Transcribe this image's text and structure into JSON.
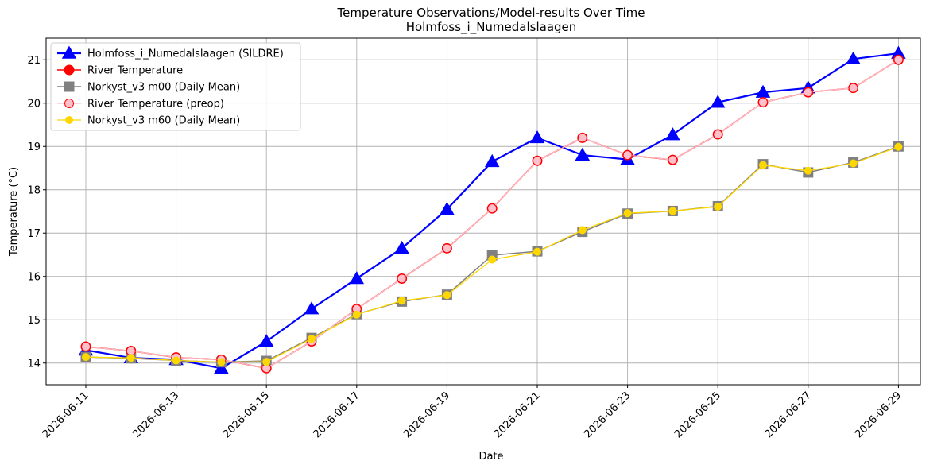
{
  "chart_data": {
    "type": "line",
    "title": "Temperature Observations/Model-results Over Time",
    "subtitle": "Holmfoss_i_Numedalslaagen",
    "xlabel": "Date",
    "ylabel": "Temperature (°C)",
    "x": [
      "2026-06-11",
      "2026-06-12",
      "2026-06-13",
      "2026-06-14",
      "2026-06-15",
      "2026-06-16",
      "2026-06-17",
      "2026-06-18",
      "2026-06-19",
      "2026-06-20",
      "2026-06-21",
      "2026-06-22",
      "2026-06-23",
      "2026-06-24",
      "2026-06-25",
      "2026-06-26",
      "2026-06-27",
      "2026-06-28",
      "2026-06-29"
    ],
    "x_ticks": [
      "2026-06-11",
      "2026-06-13",
      "2026-06-15",
      "2026-06-17",
      "2026-06-19",
      "2026-06-21",
      "2026-06-23",
      "2026-06-25",
      "2026-06-27",
      "2026-06-29"
    ],
    "ylim": [
      13.5,
      21.5
    ],
    "y_ticks": [
      14,
      15,
      16,
      17,
      18,
      19,
      20,
      21
    ],
    "grid": true,
    "legend_position": "top-left",
    "series": [
      {
        "name": "Holmfoss_i_Numedalslaagen (SILDRE)",
        "color": "#0000ff",
        "marker": "triangle",
        "values": [
          14.3,
          14.12,
          14.08,
          13.88,
          14.5,
          15.25,
          15.95,
          16.65,
          17.55,
          18.65,
          19.2,
          18.8,
          18.7,
          19.27,
          20.02,
          20.25,
          20.35,
          21.02,
          21.15
        ]
      },
      {
        "name": "River Temperature",
        "color": "#ff0000",
        "marker": "circle",
        "values": [
          14.38,
          14.28,
          14.13,
          14.08,
          13.88,
          14.5,
          15.25,
          15.95,
          16.65,
          17.57,
          18.67,
          19.2,
          18.8,
          18.69,
          19.28,
          20.02,
          20.25,
          20.35,
          21.0
        ]
      },
      {
        "name": "Norkyst_v3 m00 (Daily Mean)",
        "color": "#808080",
        "marker": "square",
        "values": [
          14.14,
          14.11,
          14.06,
          14.02,
          14.05,
          14.58,
          15.13,
          15.42,
          15.58,
          16.49,
          16.58,
          17.03,
          17.45,
          17.51,
          17.62,
          18.59,
          18.4,
          18.63,
          19.0
        ]
      },
      {
        "name": "River Temperature (preop)",
        "color": "#ffc0cb",
        "marker": "circle",
        "values": [
          14.38,
          14.28,
          14.13,
          14.08,
          13.88,
          14.5,
          15.25,
          15.95,
          16.65,
          17.57,
          18.67,
          19.2,
          18.8,
          18.69,
          19.28,
          20.02,
          20.25,
          20.35,
          21.0
        ]
      },
      {
        "name": "Norkyst_v3 m60 (Daily Mean)",
        "color": "#ffd700",
        "marker": "circle",
        "values": [
          14.14,
          14.12,
          14.06,
          14.02,
          14.03,
          14.56,
          15.12,
          15.44,
          15.57,
          16.39,
          16.57,
          17.07,
          17.46,
          17.51,
          17.61,
          18.57,
          18.44,
          18.61,
          18.99
        ]
      }
    ]
  }
}
